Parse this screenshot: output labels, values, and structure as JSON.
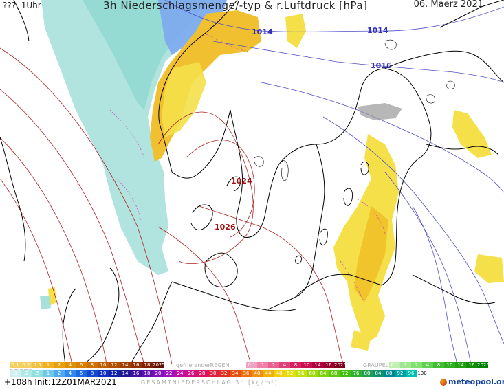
{
  "header": {
    "left": "???, 1Uhr",
    "title": "3h Niederschlagsmenge/-typ & r.Luftdruck [hPa]",
    "date": "06. Maerz 2021"
  },
  "isobars": [
    {
      "label": "1014",
      "color": "#3030c0"
    },
    {
      "label": "1014",
      "color": "#3030c0"
    },
    {
      "label": "1016",
      "color": "#3030c0"
    },
    {
      "label": "1024",
      "color": "#a01010"
    },
    {
      "label": "1026",
      "color": "#a01010"
    }
  ],
  "legend": {
    "snow_label": "SCHNEE",
    "freezing_rain_label": "gefrierenderREGEN",
    "graupel_label": "GRAUPEL",
    "rain_values": [
      "0.1",
      "0.2",
      "0.5",
      "1",
      "2",
      "4",
      "6",
      "8",
      "10",
      "12",
      "14",
      "16",
      "18",
      "2025+"
    ],
    "freezing_values": [
      "0.1",
      "1",
      "2",
      "4",
      "8",
      "10",
      "14",
      "16",
      "2025+"
    ],
    "graupel_values": [
      "0.1",
      "1",
      "2",
      "4",
      "8",
      "10",
      "14",
      "16",
      "2025+"
    ],
    "snow_values": [
      ".1",
      ".2",
      ".5",
      "1",
      "2",
      "4",
      "6",
      "8",
      "10",
      "12",
      "14",
      "16",
      "18",
      "20",
      "22",
      "24",
      "26",
      "28",
      "30",
      "32",
      "34",
      "36",
      "40",
      "44",
      "48",
      "52",
      "56",
      "60",
      "64",
      "68",
      "72",
      "76",
      "80",
      "84",
      "88",
      "92",
      "96",
      "100"
    ],
    "total_label": "GESAMTNIEDERSCHLAG 3h [kg/m²]"
  },
  "footer": {
    "forecast": "+108h  Init:12Z01MAR2021",
    "logo": "meteopool.org"
  },
  "colors": {
    "snow_light": "#a8e0dc",
    "snow_mid": "#90d8d0",
    "snow_blue": "#7da8f0",
    "rain_yellow": "#f5e04a",
    "rain_orange": "#f0b820",
    "coast": "#000000",
    "isobar_low": "#3030c0",
    "isobar_high": "#b02020"
  },
  "icons": {
    "logo": "meteopool-logo-icon"
  }
}
